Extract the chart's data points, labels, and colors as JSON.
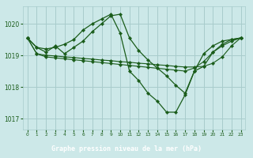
{
  "bg_color": "#cce8e8",
  "line_color": "#1a5c1a",
  "grid_color": "#a8cccc",
  "xlabel": "Graphe pression niveau de la mer (hPa)",
  "xlabel_bg": "#2d6e2d",
  "xlabel_fg": "#ffffff",
  "ylim": [
    1016.65,
    1020.55
  ],
  "xlim": [
    -0.5,
    23.5
  ],
  "yticks": [
    1017,
    1018,
    1019,
    1020
  ],
  "xticks": [
    0,
    1,
    2,
    3,
    4,
    5,
    6,
    7,
    8,
    9,
    10,
    11,
    12,
    13,
    14,
    15,
    16,
    17,
    18,
    19,
    20,
    21,
    22,
    23
  ],
  "s1_x": [
    0,
    1,
    2,
    3,
    4,
    5,
    6,
    7,
    8,
    9,
    10,
    11,
    12,
    13,
    14,
    15,
    16,
    17,
    18,
    19,
    20,
    21,
    22,
    23
  ],
  "s1_y": [
    1019.55,
    1019.25,
    1019.1,
    1019.3,
    1019.05,
    1019.25,
    1019.45,
    1019.75,
    1020.0,
    1020.25,
    1020.3,
    1019.55,
    1019.15,
    1018.85,
    1018.6,
    1018.35,
    1018.05,
    1017.8,
    1018.5,
    1018.65,
    1019.1,
    1019.3,
    1019.45,
    1019.55
  ],
  "s2_x": [
    0,
    1,
    2,
    3,
    4,
    5,
    6,
    7,
    8,
    9,
    10,
    11,
    12,
    13,
    14,
    15,
    16,
    17,
    18,
    19,
    20,
    21,
    22,
    23
  ],
  "s2_y": [
    1019.55,
    1019.25,
    1019.2,
    1019.25,
    1019.35,
    1019.5,
    1019.8,
    1020.0,
    1020.15,
    1020.3,
    1019.7,
    1018.5,
    1018.2,
    1017.8,
    1017.55,
    1017.2,
    1017.2,
    1017.75,
    1018.5,
    1019.05,
    1019.3,
    1019.45,
    1019.5,
    1019.55
  ],
  "s3_x": [
    0,
    1,
    2,
    3,
    4,
    5,
    6,
    7,
    8,
    9,
    10,
    11,
    12,
    13,
    14,
    15,
    16,
    17,
    18,
    19,
    20,
    21,
    22,
    23
  ],
  "s3_y": [
    1019.55,
    1019.05,
    1018.95,
    1018.92,
    1018.89,
    1018.86,
    1018.83,
    1018.8,
    1018.77,
    1018.74,
    1018.71,
    1018.68,
    1018.65,
    1018.62,
    1018.59,
    1018.56,
    1018.53,
    1018.5,
    1018.6,
    1018.8,
    1019.1,
    1019.35,
    1019.5,
    1019.55
  ],
  "s4_x": [
    0,
    1,
    2,
    3,
    4,
    5,
    6,
    7,
    8,
    9,
    10,
    11,
    12,
    13,
    14,
    15,
    16,
    17,
    18,
    19,
    20,
    21,
    22,
    23
  ],
  "s4_y": [
    1019.55,
    1019.05,
    1019.0,
    1018.98,
    1018.95,
    1018.93,
    1018.9,
    1018.88,
    1018.85,
    1018.83,
    1018.8,
    1018.78,
    1018.75,
    1018.73,
    1018.7,
    1018.68,
    1018.65,
    1018.63,
    1018.63,
    1018.65,
    1018.75,
    1018.95,
    1019.3,
    1019.55
  ]
}
